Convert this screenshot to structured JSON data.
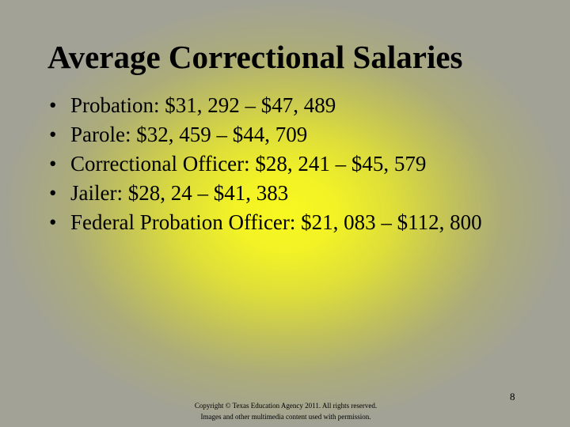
{
  "slide": {
    "title": "Average Correctional Salaries",
    "bullet_symbol": "•",
    "bullets": [
      "Probation: $31, 292 – $47, 489",
      "Parole: $32, 459 – $44, 709",
      "Correctional Officer: $28, 241 – $45, 579",
      "Jailer: $28, 24 – $41, 383",
      "Federal Probation Officer: $21, 083 – $112, 800"
    ],
    "footer": {
      "copyright_line1": "Copyright © Texas Education Agency 2011. All rights reserved.",
      "copyright_line2": "Images and other multimedia content used with permission.",
      "page_number": "8"
    }
  }
}
